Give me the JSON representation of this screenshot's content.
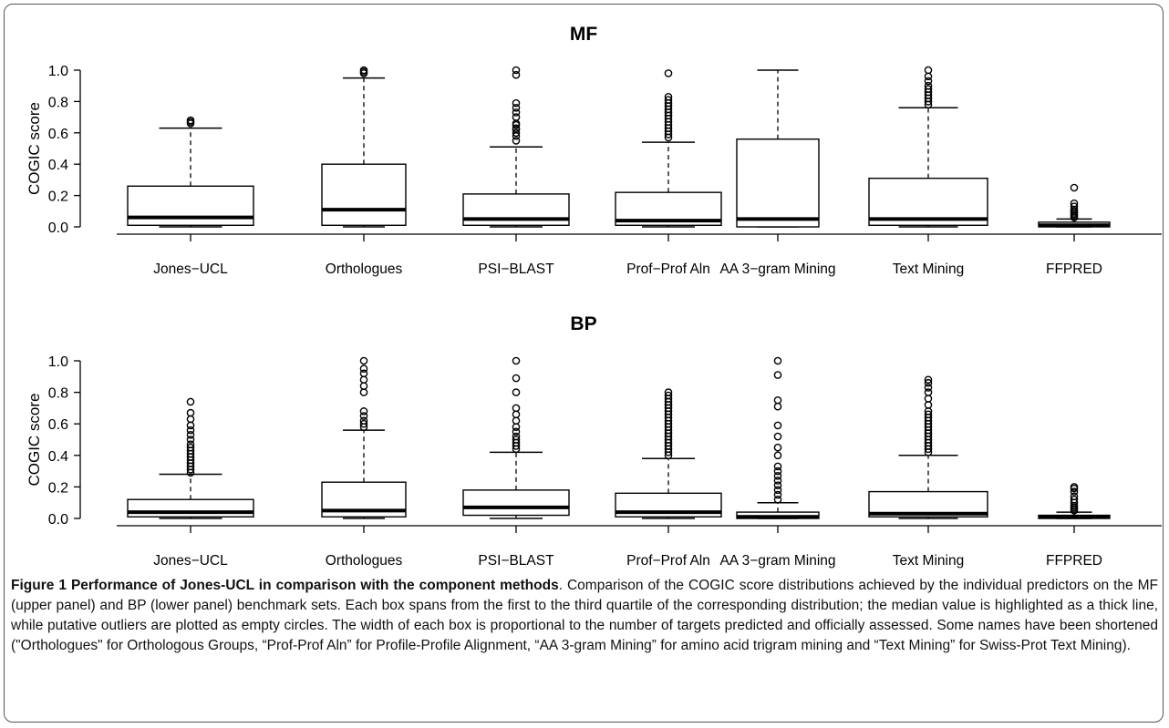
{
  "chart_data": [
    {
      "type": "box",
      "title": "MF",
      "ylabel": "COGIC score",
      "ylim": [
        0,
        1.0
      ],
      "yticks": [
        "0.0",
        "0.2",
        "0.4",
        "0.6",
        "0.8",
        "1.0"
      ],
      "categories": [
        "Jones−UCL",
        "Orthologues",
        "PSI−BLAST",
        "Prof−Prof Aln",
        "AA 3−gram Mining",
        "Text Mining",
        "FFPRED"
      ],
      "boxes": [
        {
          "min": 0.0,
          "q1": 0.01,
          "median": 0.06,
          "q3": 0.26,
          "max": 0.63,
          "outliers": [
            0.66,
            0.67,
            0.68
          ],
          "width_rel": 1.0
        },
        {
          "min": 0.0,
          "q1": 0.01,
          "median": 0.11,
          "q3": 0.4,
          "max": 0.95,
          "outliers": [
            0.98,
            0.99,
            1.0
          ],
          "width_rel": 1.0
        },
        {
          "min": 0.0,
          "q1": 0.01,
          "median": 0.05,
          "q3": 0.21,
          "max": 0.51,
          "outliers": [
            0.55,
            0.58,
            0.6,
            0.62,
            0.63,
            0.65,
            0.66,
            0.7,
            0.73,
            0.76,
            0.79,
            0.97,
            1.0
          ],
          "width_rel": 1.0
        },
        {
          "min": 0.0,
          "q1": 0.01,
          "median": 0.04,
          "q3": 0.22,
          "max": 0.54,
          "outliers": [
            0.57,
            0.59,
            0.61,
            0.63,
            0.65,
            0.67,
            0.69,
            0.71,
            0.73,
            0.75,
            0.77,
            0.79,
            0.81,
            0.83,
            0.98
          ],
          "width_rel": 1.0
        },
        {
          "min": 0.0,
          "q1": 0.0,
          "median": 0.05,
          "q3": 0.56,
          "max": 1.0,
          "outliers": [],
          "width_rel": 1.0
        },
        {
          "min": 0.0,
          "q1": 0.01,
          "median": 0.05,
          "q3": 0.31,
          "max": 0.76,
          "outliers": [
            0.78,
            0.8,
            0.82,
            0.84,
            0.86,
            0.88,
            0.9,
            0.93,
            0.96,
            1.0
          ],
          "width_rel": 1.0
        },
        {
          "min": 0.0,
          "q1": 0.0,
          "median": 0.01,
          "q3": 0.03,
          "max": 0.05,
          "outliers": [
            0.06,
            0.07,
            0.08,
            0.09,
            0.1,
            0.11,
            0.13,
            0.15,
            0.25
          ],
          "width_rel": 1.0
        }
      ]
    },
    {
      "type": "box",
      "title": "BP",
      "ylabel": "COGIC score",
      "ylim": [
        0,
        1.0
      ],
      "yticks": [
        "0.0",
        "0.2",
        "0.4",
        "0.6",
        "0.8",
        "1.0"
      ],
      "categories": [
        "Jones−UCL",
        "Orthologues",
        "PSI−BLAST",
        "Prof−Prof Aln",
        "AA 3−gram Mining",
        "Text Mining",
        "FFPRED"
      ],
      "boxes": [
        {
          "min": 0.0,
          "q1": 0.01,
          "median": 0.04,
          "q3": 0.12,
          "max": 0.28,
          "outliers": [
            0.29,
            0.31,
            0.33,
            0.35,
            0.37,
            0.39,
            0.41,
            0.43,
            0.45,
            0.47,
            0.5,
            0.53,
            0.56,
            0.59,
            0.63,
            0.67,
            0.74
          ],
          "width_rel": 1.0
        },
        {
          "min": 0.0,
          "q1": 0.01,
          "median": 0.05,
          "q3": 0.23,
          "max": 0.56,
          "outliers": [
            0.58,
            0.6,
            0.62,
            0.65,
            0.68,
            0.8,
            0.84,
            0.88,
            0.92,
            0.95,
            1.0
          ],
          "width_rel": 1.0
        },
        {
          "min": 0.0,
          "q1": 0.02,
          "median": 0.07,
          "q3": 0.18,
          "max": 0.42,
          "outliers": [
            0.44,
            0.46,
            0.48,
            0.5,
            0.52,
            0.55,
            0.58,
            0.62,
            0.66,
            0.7,
            0.8,
            0.89,
            1.0
          ],
          "width_rel": 1.0
        },
        {
          "min": 0.0,
          "q1": 0.01,
          "median": 0.04,
          "q3": 0.16,
          "max": 0.38,
          "outliers": [
            0.4,
            0.42,
            0.44,
            0.46,
            0.48,
            0.5,
            0.52,
            0.54,
            0.56,
            0.58,
            0.6,
            0.62,
            0.64,
            0.66,
            0.68,
            0.7,
            0.72,
            0.74,
            0.76,
            0.78,
            0.8
          ],
          "width_rel": 1.0
        },
        {
          "min": 0.0,
          "q1": 0.0,
          "median": 0.01,
          "q3": 0.04,
          "max": 0.1,
          "outliers": [
            0.12,
            0.15,
            0.18,
            0.21,
            0.24,
            0.27,
            0.3,
            0.33,
            0.4,
            0.45,
            0.52,
            0.59,
            0.71,
            0.75,
            0.91,
            1.0
          ],
          "width_rel": 1.0
        },
        {
          "min": 0.0,
          "q1": 0.01,
          "median": 0.03,
          "q3": 0.17,
          "max": 0.4,
          "outliers": [
            0.42,
            0.44,
            0.46,
            0.48,
            0.5,
            0.52,
            0.54,
            0.56,
            0.58,
            0.6,
            0.62,
            0.64,
            0.66,
            0.68,
            0.72,
            0.76,
            0.8,
            0.83,
            0.86,
            0.88
          ],
          "width_rel": 1.0
        },
        {
          "min": 0.0,
          "q1": 0.0,
          "median": 0.01,
          "q3": 0.02,
          "max": 0.04,
          "outliers": [
            0.05,
            0.06,
            0.07,
            0.08,
            0.1,
            0.12,
            0.14,
            0.17,
            0.19,
            0.2
          ],
          "width_rel": 1.0
        }
      ]
    }
  ],
  "caption": {
    "label": "Figure 1 Performance of Jones-UCL in comparison with the component methods",
    "text": ". Comparison of the COGIC score distributions achieved by the individual predictors on the MF (upper panel) and BP (lower panel) benchmark sets. Each box spans from the first to the third quartile of the corresponding distribution; the median value is highlighted as a thick line, while putative outliers are plotted as empty circles. The width of each box is proportional to the number of targets predicted and officially assessed. Some names have been shortened (\"Orthologues\" for Orthologous Groups, “Prof-Prof Aln” for Profile-Profile Alignment, “AA 3-gram Mining” for amino acid trigram mining and “Text Mining” for Swiss-Prot Text Mining)."
  }
}
